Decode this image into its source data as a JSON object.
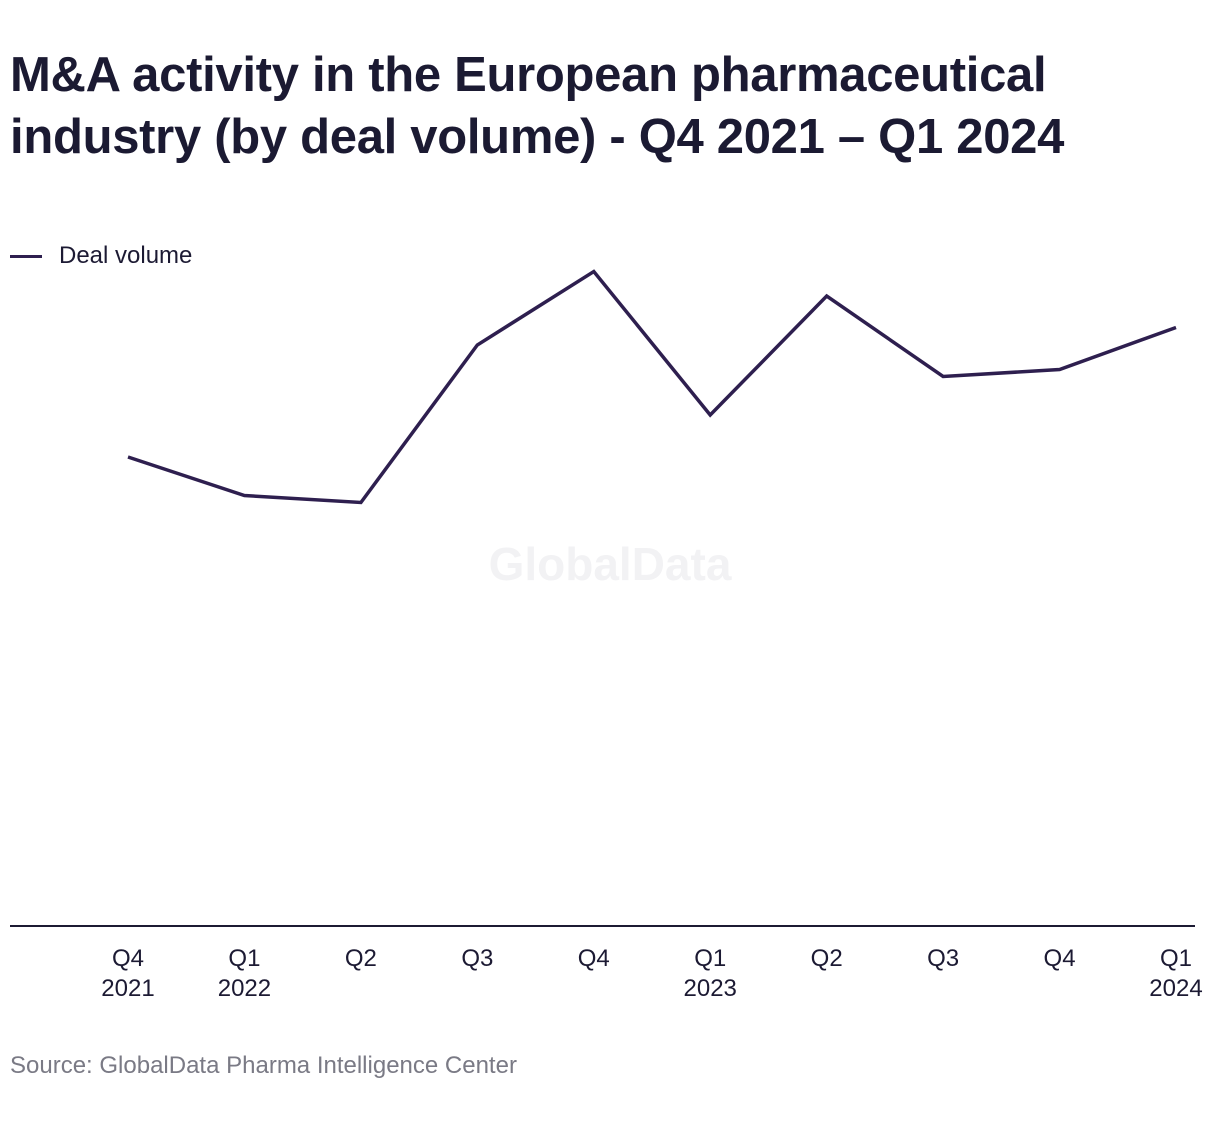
{
  "title": "M&A activity in the European pharmaceutical industry (by deal volume) - Q4 2021 – Q1 2024",
  "watermark": "GlobalData",
  "source": "Source: GlobalData Pharma Intelligence Center",
  "colors": {
    "series_line": "#2e1f4f",
    "axis": "#1c1a33"
  },
  "chart_data": {
    "type": "line",
    "title": "M&A activity in the European pharmaceutical industry (by deal volume) - Q4 2021 – Q1 2024",
    "xlabel": "",
    "ylabel": "",
    "categories": [
      [
        "Q4",
        "2021"
      ],
      [
        "Q1",
        "2022"
      ],
      [
        "Q2",
        ""
      ],
      [
        "Q3",
        ""
      ],
      [
        "Q4",
        ""
      ],
      [
        "Q1",
        "2023"
      ],
      [
        "Q2",
        ""
      ],
      [
        "Q3",
        ""
      ],
      [
        "Q4",
        ""
      ],
      [
        "Q1",
        "2024"
      ]
    ],
    "series": [
      {
        "name": "Deal volume",
        "values": [
          134,
          123,
          121,
          166,
          187,
          146,
          180,
          157,
          159,
          171
        ]
      }
    ],
    "ylim": [
      0,
      200
    ],
    "grid": false,
    "legend": "top-left",
    "y_axis_labels_shown": false
  }
}
